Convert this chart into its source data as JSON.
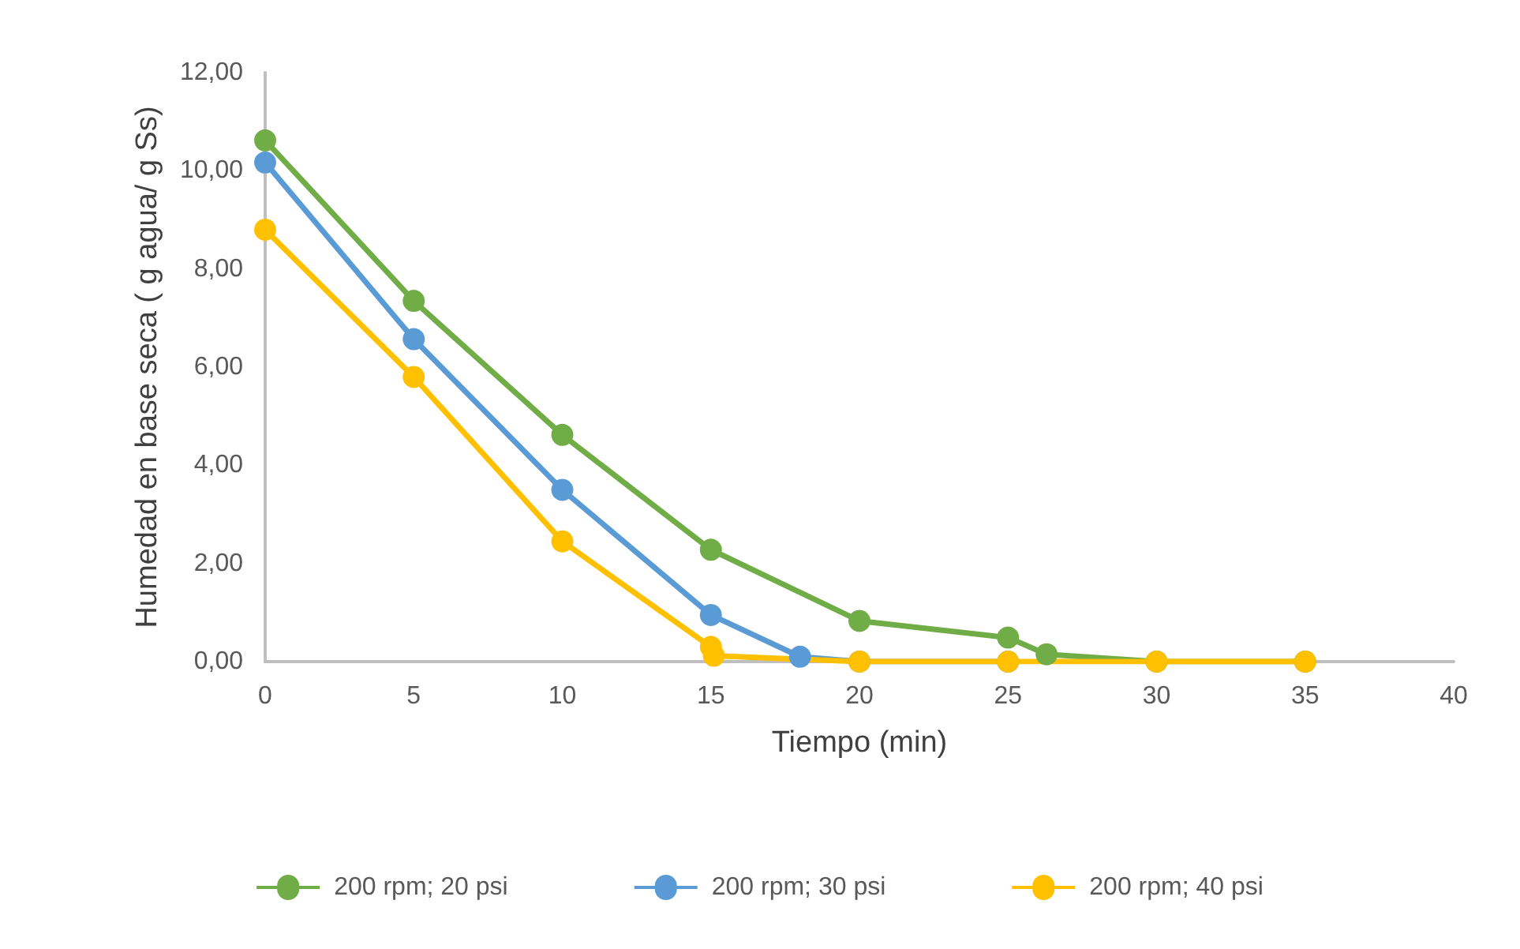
{
  "chart_data": {
    "type": "line",
    "xlabel": "Tiempo (min)",
    "ylabel": "Humedad en base seca ( g agua/ g Ss)",
    "xlim": [
      0,
      40
    ],
    "xticks": [
      0,
      5,
      10,
      15,
      20,
      25,
      30,
      35,
      40
    ],
    "ylim": [
      0,
      12
    ],
    "yticks": [
      {
        "value": 0,
        "label": "0,00"
      },
      {
        "value": 2,
        "label": "2,00"
      },
      {
        "value": 4,
        "label": "4,00"
      },
      {
        "value": 6,
        "label": "6,00"
      },
      {
        "value": 8,
        "label": "8,00"
      },
      {
        "value": 10,
        "label": "10,00"
      },
      {
        "value": 12,
        "label": "12,00"
      }
    ],
    "grid": false,
    "legend": "bottom",
    "marker": "circle",
    "line_style": "solid",
    "series": [
      {
        "name": "200 rpm; 20 psi",
        "color": "#70ad47",
        "x": [
          0,
          5,
          10,
          15,
          20,
          25,
          26.3,
          30,
          35
        ],
        "values": [
          10.62,
          7.35,
          4.62,
          2.28,
          0.83,
          0.49,
          0.15,
          0,
          0
        ]
      },
      {
        "name": "200 rpm; 30 psi",
        "color": "#5b9bd5",
        "x": [
          0,
          5,
          10,
          15,
          18,
          20,
          25
        ],
        "values": [
          10.17,
          6.57,
          3.5,
          0.95,
          0.1,
          0,
          0
        ]
      },
      {
        "name": "200 rpm; 40 psi",
        "color": "#ffc000",
        "x": [
          0,
          5,
          10,
          15,
          15.1,
          20,
          25,
          30,
          35
        ],
        "values": [
          8.8,
          5.8,
          2.45,
          0.3,
          0.12,
          0,
          0,
          0,
          0
        ]
      }
    ]
  }
}
